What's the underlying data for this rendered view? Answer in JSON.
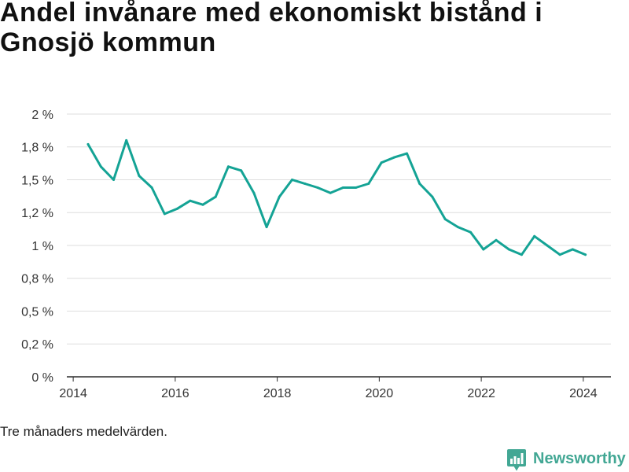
{
  "chart_data": {
    "type": "line",
    "title": "Andel invånare med ekonomiskt bistånd i Gnosjö kommun",
    "x": [
      "2014-04",
      "2014-07",
      "2014-10",
      "2015-01",
      "2015-04",
      "2015-07",
      "2015-10",
      "2016-01",
      "2016-04",
      "2016-07",
      "2016-10",
      "2017-01",
      "2017-04",
      "2017-07",
      "2017-10",
      "2018-01",
      "2018-04",
      "2018-07",
      "2018-10",
      "2019-01",
      "2019-04",
      "2019-07",
      "2019-10",
      "2020-01",
      "2020-04",
      "2020-07",
      "2020-10",
      "2021-01",
      "2021-04",
      "2021-07",
      "2021-10",
      "2022-01",
      "2022-04",
      "2022-07",
      "2022-10",
      "2023-01",
      "2023-04",
      "2023-07",
      "2023-10",
      "2024-01"
    ],
    "series": [
      {
        "values": [
          1.77,
          1.6,
          1.5,
          1.8,
          1.53,
          1.44,
          1.24,
          1.28,
          1.34,
          1.31,
          1.37,
          1.6,
          1.57,
          1.4,
          1.14,
          1.37,
          1.5,
          1.47,
          1.44,
          1.4,
          1.44,
          1.44,
          1.47,
          1.63,
          1.67,
          1.7,
          1.47,
          1.37,
          1.2,
          1.14,
          1.1,
          0.97,
          1.04,
          0.97,
          0.93,
          1.07,
          1.0,
          0.93,
          0.97,
          0.93
        ]
      }
    ],
    "xlim": [
      "2013-11",
      "2024-07"
    ],
    "ylim": [
      0,
      2
    ],
    "x_ticks": [
      "2014",
      "2016",
      "2018",
      "2020",
      "2022",
      "2024"
    ],
    "y_ticks": [
      {
        "value": 0,
        "label": "0 %"
      },
      {
        "value": 0.25,
        "label": "0,2 %"
      },
      {
        "value": 0.5,
        "label": "0,5 %"
      },
      {
        "value": 0.75,
        "label": "0,8 %"
      },
      {
        "value": 1,
        "label": "1 %"
      },
      {
        "value": 1.25,
        "label": "1,2 %"
      },
      {
        "value": 1.5,
        "label": "1,5 %"
      },
      {
        "value": 1.75,
        "label": "1,8 %"
      },
      {
        "value": 2,
        "label": "2 %"
      }
    ],
    "grid": true,
    "legend": "none"
  },
  "footer": {
    "note": "Tre månaders medelvärden.",
    "brand": "Newsworthy",
    "brand_icon": "bar-chart-bubble-icon"
  },
  "colors": {
    "line": "#14a395",
    "grid": "#dedede",
    "axis": "#2b2b2b",
    "text": "#333333",
    "brand": "#42a794",
    "title": "#111111"
  }
}
